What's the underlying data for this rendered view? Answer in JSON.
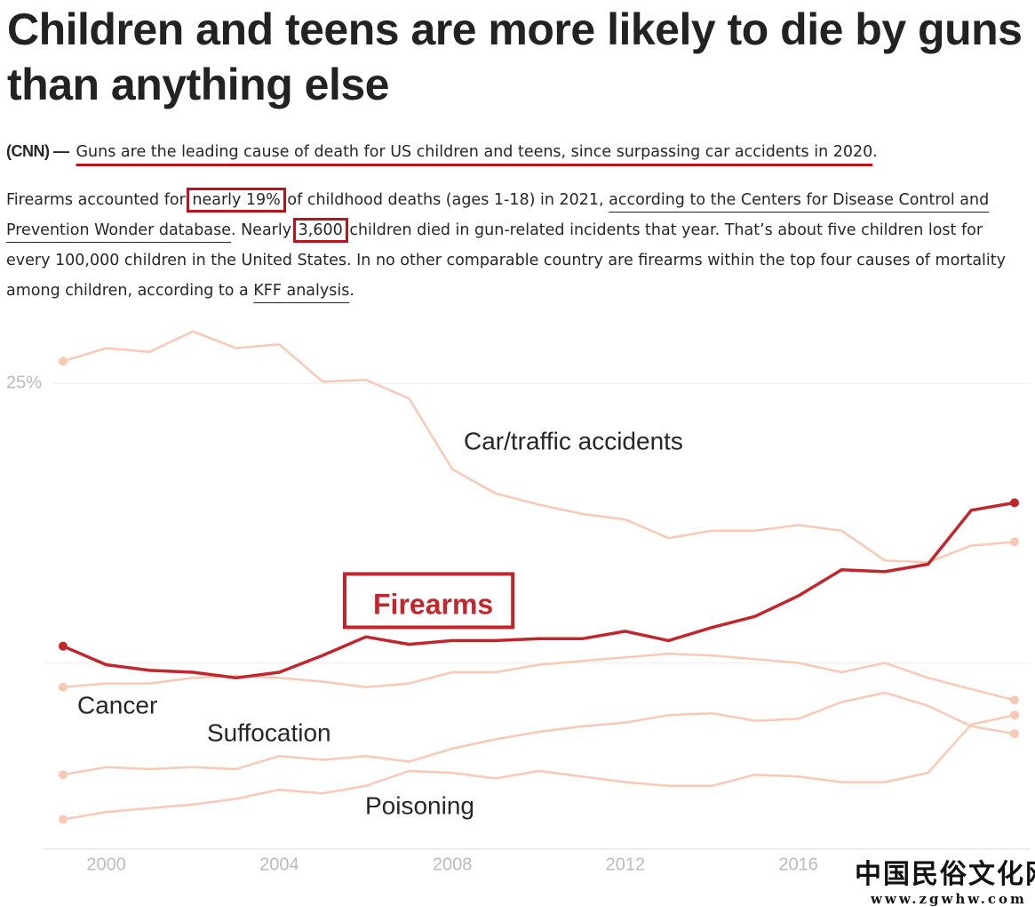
{
  "header": {
    "title": "Children and teens are more likely to die by guns than anything else"
  },
  "article": {
    "lede": [
      "(CNN) —",
      "Guns are the leading cause of death for US children and teens, since surpassing car accidents in 2020",
      "."
    ],
    "body": [
      "Firearms accounted for ",
      "nearly 19%",
      " of childhood deaths (ages 1-18) in 2021, ",
      "according to the Centers for Disease Control and Prevention Wonder database",
      ". Nearly ",
      "3,600",
      " children died in gun-related incidents that year. That’s about five children lost for every 100,000 children in the United States. In no other comparable country are firearms within the top four causes of mortality among children, according to a ",
      "KFF analysis",
      "."
    ]
  },
  "chart_data": {
    "type": "line",
    "x": [
      1999,
      2000,
      2001,
      2002,
      2003,
      2004,
      2005,
      2006,
      2007,
      2008,
      2009,
      2010,
      2011,
      2012,
      2013,
      2014,
      2015,
      2016,
      2017,
      2018,
      2019,
      2020,
      2021
    ],
    "xlim": [
      1999,
      2021
    ],
    "xticks": [
      2000,
      2004,
      2008,
      2012,
      2016
    ],
    "ylim": [
      0,
      28.5
    ],
    "yticks": [
      {
        "value": 10,
        "label": null
      },
      {
        "value": 25,
        "label": "25%"
      }
    ],
    "grid": true,
    "series": [
      {
        "name": "Car/traffic accidents",
        "color": "#f9c9b6",
        "values": [
          26.2,
          26.9,
          26.7,
          27.8,
          26.9,
          27.1,
          25.1,
          25.2,
          24.2,
          20.4,
          19.1,
          18.5,
          18.0,
          17.7,
          16.7,
          17.1,
          17.1,
          17.4,
          17.1,
          15.5,
          15.4,
          16.3,
          16.5
        ]
      },
      {
        "name": "Firearms",
        "color": "#c1262d",
        "boxed": true,
        "values": [
          10.9,
          9.9,
          9.6,
          9.5,
          9.2,
          9.5,
          10.4,
          11.4,
          11.0,
          11.2,
          11.2,
          11.3,
          11.3,
          11.7,
          11.2,
          11.9,
          12.5,
          13.6,
          15.0,
          14.9,
          15.3,
          18.2,
          18.6
        ]
      },
      {
        "name": "Cancer",
        "color": "#f9c9b6",
        "values": [
          8.7,
          8.9,
          8.9,
          9.2,
          9.3,
          9.2,
          9.0,
          8.7,
          8.9,
          9.5,
          9.5,
          9.9,
          10.1,
          10.3,
          10.5,
          10.4,
          10.2,
          10.0,
          9.5,
          10.0,
          9.2,
          8.6,
          8.0
        ]
      },
      {
        "name": "Suffocation",
        "color": "#f9c9b6",
        "values": [
          4.0,
          4.4,
          4.3,
          4.4,
          4.3,
          5.0,
          4.8,
          5.0,
          4.7,
          5.4,
          5.9,
          6.3,
          6.6,
          6.8,
          7.2,
          7.3,
          6.9,
          7.0,
          7.9,
          8.4,
          7.7,
          6.6,
          6.2
        ]
      },
      {
        "name": "Poisoning",
        "color": "#f9c9b6",
        "values": [
          1.6,
          2.0,
          2.2,
          2.4,
          2.7,
          3.2,
          3.0,
          3.4,
          4.2,
          4.1,
          3.8,
          4.2,
          3.9,
          3.6,
          3.4,
          3.4,
          4.0,
          3.9,
          3.6,
          3.6,
          4.1,
          6.7,
          7.2
        ]
      }
    ]
  },
  "watermark": {
    "name": "中国民俗文化网",
    "url": "www.zgwhw.com"
  }
}
